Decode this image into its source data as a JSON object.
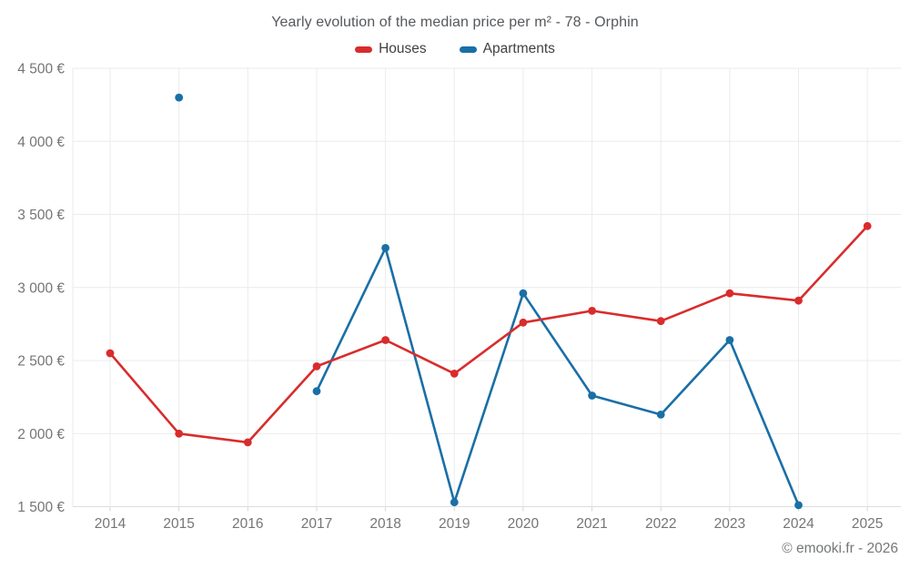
{
  "header": {
    "title": "Yearly evolution of the median price per m² - 78 - Orphin"
  },
  "legend": {
    "items": [
      {
        "label": "Houses",
        "color": "#d92c2c"
      },
      {
        "label": "Apartments",
        "color": "#1a6fa6"
      }
    ]
  },
  "footer": {
    "copyright": "© emooki.fr - 2026"
  },
  "chart_data": {
    "type": "line",
    "title": "Yearly evolution of the median price per m² - 78 - Orphin",
    "x": [
      "2014",
      "2015",
      "2016",
      "2017",
      "2018",
      "2019",
      "2020",
      "2021",
      "2022",
      "2023",
      "2024",
      "2025"
    ],
    "xlabel": "",
    "ylabel": "",
    "ylim": [
      1500,
      4500
    ],
    "grid": true,
    "legend_position": "top",
    "y_ticks": [
      {
        "value": 1500,
        "label": "1 500 €"
      },
      {
        "value": 2000,
        "label": "2 000 €"
      },
      {
        "value": 2500,
        "label": "2 500 €"
      },
      {
        "value": 3000,
        "label": "3 000 €"
      },
      {
        "value": 3500,
        "label": "3 500 €"
      },
      {
        "value": 4000,
        "label": "4 000 €"
      },
      {
        "value": 4500,
        "label": "4 500 €"
      }
    ],
    "series": [
      {
        "name": "Houses",
        "color": "#d92c2c",
        "values": [
          2550,
          2000,
          1940,
          2460,
          2640,
          2410,
          2760,
          2840,
          2770,
          2960,
          2910,
          3420
        ]
      },
      {
        "name": "Apartments",
        "color": "#1a6fa6",
        "values": [
          null,
          4300,
          null,
          2290,
          3270,
          1530,
          2960,
          2260,
          2130,
          2640,
          1510,
          null
        ]
      }
    ]
  }
}
